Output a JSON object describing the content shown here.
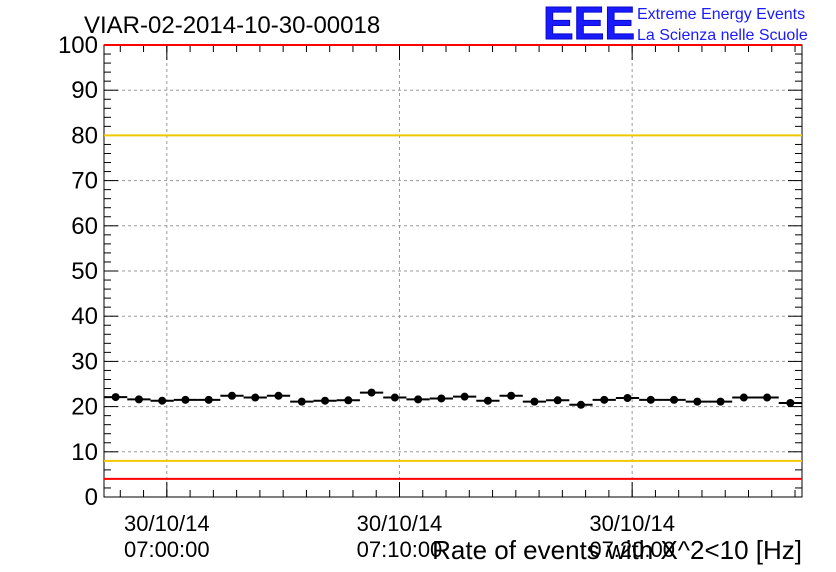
{
  "title": "VIAR-02-2014-10-30-00018",
  "logo": {
    "mark": "EEE",
    "line1": "Extreme Energy Events",
    "line2": "La Scienza nelle Scuole",
    "color": "#1a1aff"
  },
  "chart_data": {
    "type": "scatter",
    "title": "VIAR-02-2014-10-30-00018",
    "xlabel": "Rate of events with X^2<10 [Hz]",
    "ylabel": "",
    "ylim": [
      0,
      100
    ],
    "yticks": [
      0,
      10,
      20,
      30,
      40,
      50,
      60,
      70,
      80,
      90,
      100
    ],
    "x_tick_labels": [
      {
        "date": "30/10/14",
        "time": "07:00:00",
        "minute": 2.7
      },
      {
        "date": "30/10/14",
        "time": "07:10:00",
        "minute": 12.7
      },
      {
        "date": "30/10/14",
        "time": "07:20:00",
        "minute": 22.7
      }
    ],
    "xlim_minutes": [
      0,
      30
    ],
    "grid": true,
    "reference_lines": [
      {
        "value": 100,
        "color": "#ff0000"
      },
      {
        "value": 80,
        "color": "#f0c800"
      },
      {
        "value": 8,
        "color": "#f0c800"
      },
      {
        "value": 4,
        "color": "#ff0000"
      }
    ],
    "series": [
      {
        "x": [
          0.5,
          1.5,
          2.5,
          3.5,
          4.5,
          5.5,
          6.5,
          7.5,
          8.5,
          9.5,
          10.5,
          11.5,
          12.5,
          13.5,
          14.5,
          15.5,
          16.5,
          17.5,
          18.5,
          19.5,
          20.5,
          21.5,
          22.5,
          23.5,
          24.5,
          25.5,
          26.5,
          27.5,
          28.5,
          29.5
        ],
        "y": [
          22.1,
          21.6,
          21.3,
          21.5,
          21.5,
          22.4,
          22.0,
          22.4,
          21.1,
          21.3,
          21.4,
          23.1,
          22.0,
          21.6,
          21.8,
          22.2,
          21.3,
          22.4,
          21.1,
          21.4,
          20.4,
          21.5,
          21.9,
          21.5,
          21.5,
          21.1,
          21.1,
          22.0,
          22.0,
          20.8
        ],
        "color": "#000000"
      }
    ]
  }
}
